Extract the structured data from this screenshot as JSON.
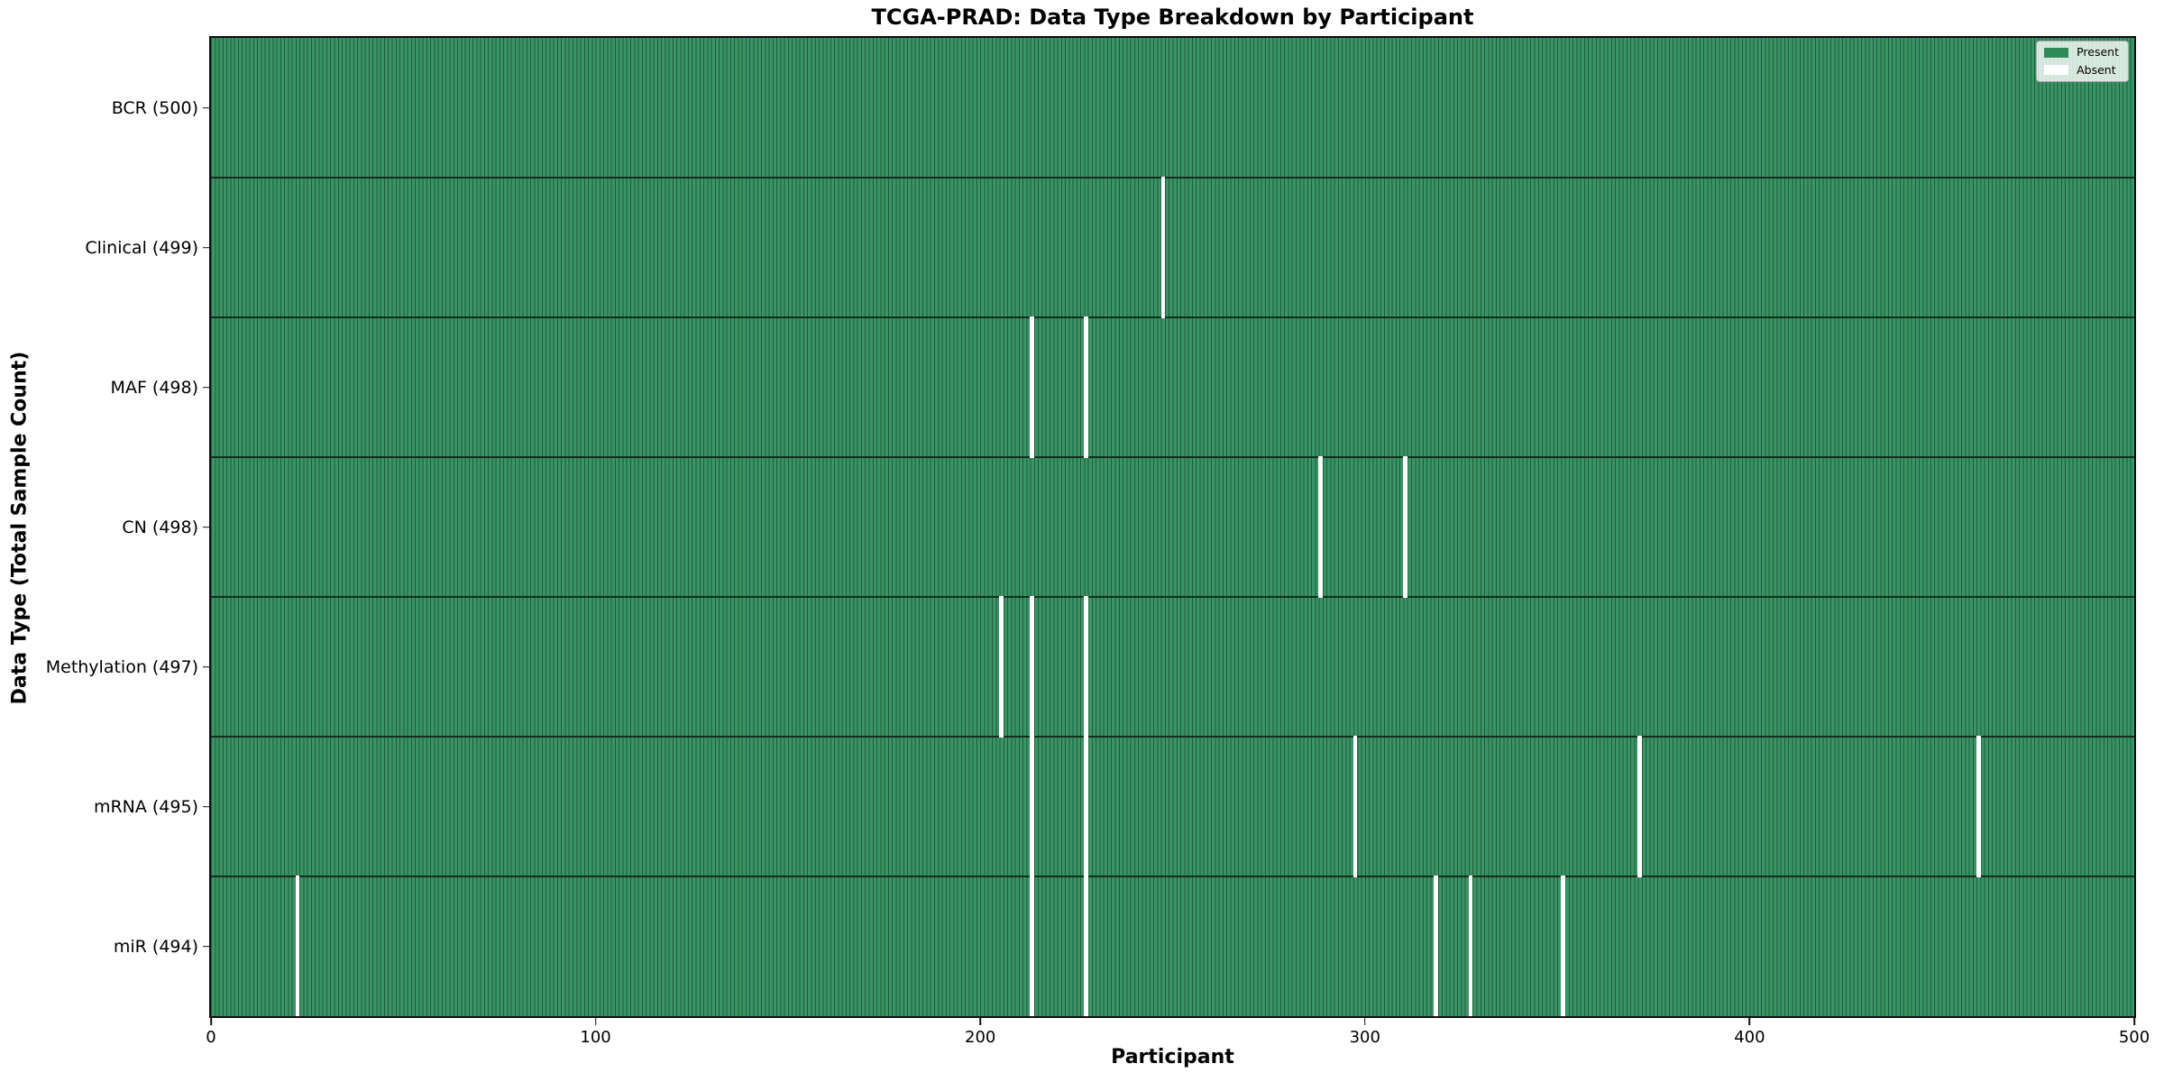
{
  "title": "TCGA-PRAD: Data Type Breakdown by Participant",
  "axes": {
    "xlabel": "Participant",
    "ylabel": "Data Type (Total Sample Count)"
  },
  "legend": {
    "present_label": "Present",
    "absent_label": "Absent"
  },
  "colors": {
    "present_fill": "#3a9465",
    "bar_edge": "#1f5c3c",
    "absent_fill": "#ffffff",
    "legend_present_swatch": "#2e8b57",
    "divider": "#122e1f"
  },
  "chart_data": {
    "type": "heatmap",
    "title": "TCGA-PRAD: Data Type Breakdown by Participant",
    "xlabel": "Participant",
    "ylabel": "Data Type (Total Sample Count)",
    "x_range": [
      0,
      500
    ],
    "x_ticks": [
      0,
      100,
      200,
      300,
      400,
      500
    ],
    "n_participants": 500,
    "legend_position": "upper right",
    "states": [
      "Present",
      "Absent"
    ],
    "rows": [
      {
        "label": "BCR (500)",
        "data_type": "BCR",
        "total_samples": 500,
        "absent_participants": []
      },
      {
        "label": "Clinical (499)",
        "data_type": "Clinical",
        "total_samples": 499,
        "absent_participants": [
          247
        ]
      },
      {
        "label": "MAF (498)",
        "data_type": "MAF",
        "total_samples": 498,
        "absent_participants": [
          213,
          227
        ]
      },
      {
        "label": "CN (498)",
        "data_type": "CN",
        "total_samples": 498,
        "absent_participants": [
          288,
          310
        ]
      },
      {
        "label": "Methylation (497)",
        "data_type": "Methylation",
        "total_samples": 497,
        "absent_participants": [
          205,
          213,
          227
        ]
      },
      {
        "label": "mRNA (495)",
        "data_type": "mRNA",
        "total_samples": 495,
        "absent_participants": [
          213,
          227,
          297,
          371,
          459
        ]
      },
      {
        "label": "miR (494)",
        "data_type": "miR",
        "total_samples": 494,
        "absent_participants": [
          22,
          213,
          227,
          318,
          327,
          351
        ]
      }
    ]
  }
}
